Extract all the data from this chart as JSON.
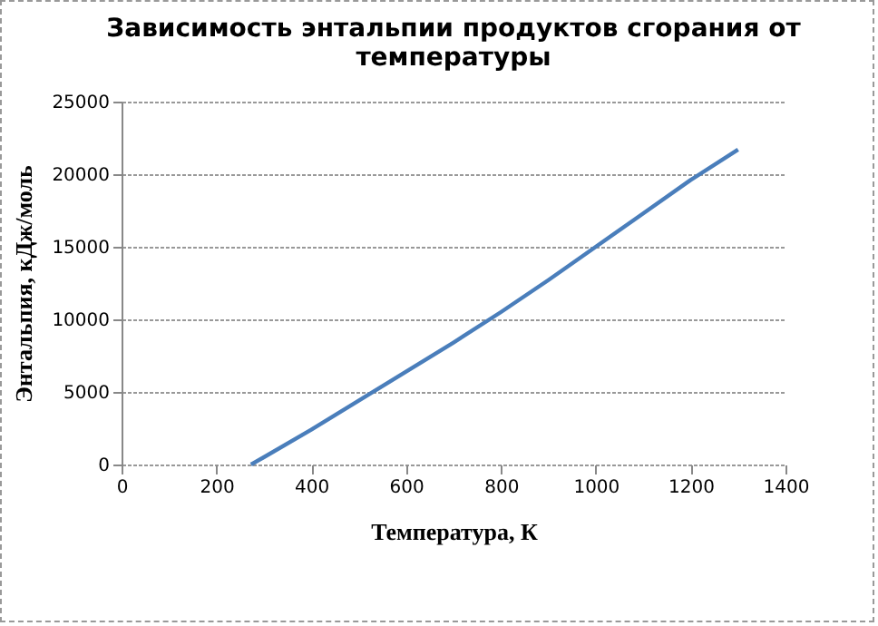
{
  "chart_data": {
    "type": "line",
    "title": "Зависимость энтальпии продуктов сгорания от температуры",
    "xlabel": "Температура, К",
    "ylabel": "Энтальпия, кДж/моль",
    "series": [
      {
        "color": "#4a7ebb",
        "x": [
          273,
          300,
          400,
          500,
          600,
          700,
          800,
          900,
          1000,
          1100,
          1200,
          1300
        ],
        "values": [
          0,
          500,
          2400,
          4400,
          6400,
          8400,
          10500,
          12700,
          15000,
          17300,
          19600,
          21700
        ]
      }
    ],
    "xlim": [
      0,
      1400
    ],
    "xticks": [
      0,
      200,
      400,
      600,
      800,
      1000,
      1200,
      1400
    ],
    "ylim": [
      0,
      25000
    ],
    "yticks": [
      0,
      5000,
      10000,
      15000,
      20000,
      25000
    ],
    "grid": "y",
    "legend": false,
    "marker": "none",
    "line_style": "solid"
  }
}
